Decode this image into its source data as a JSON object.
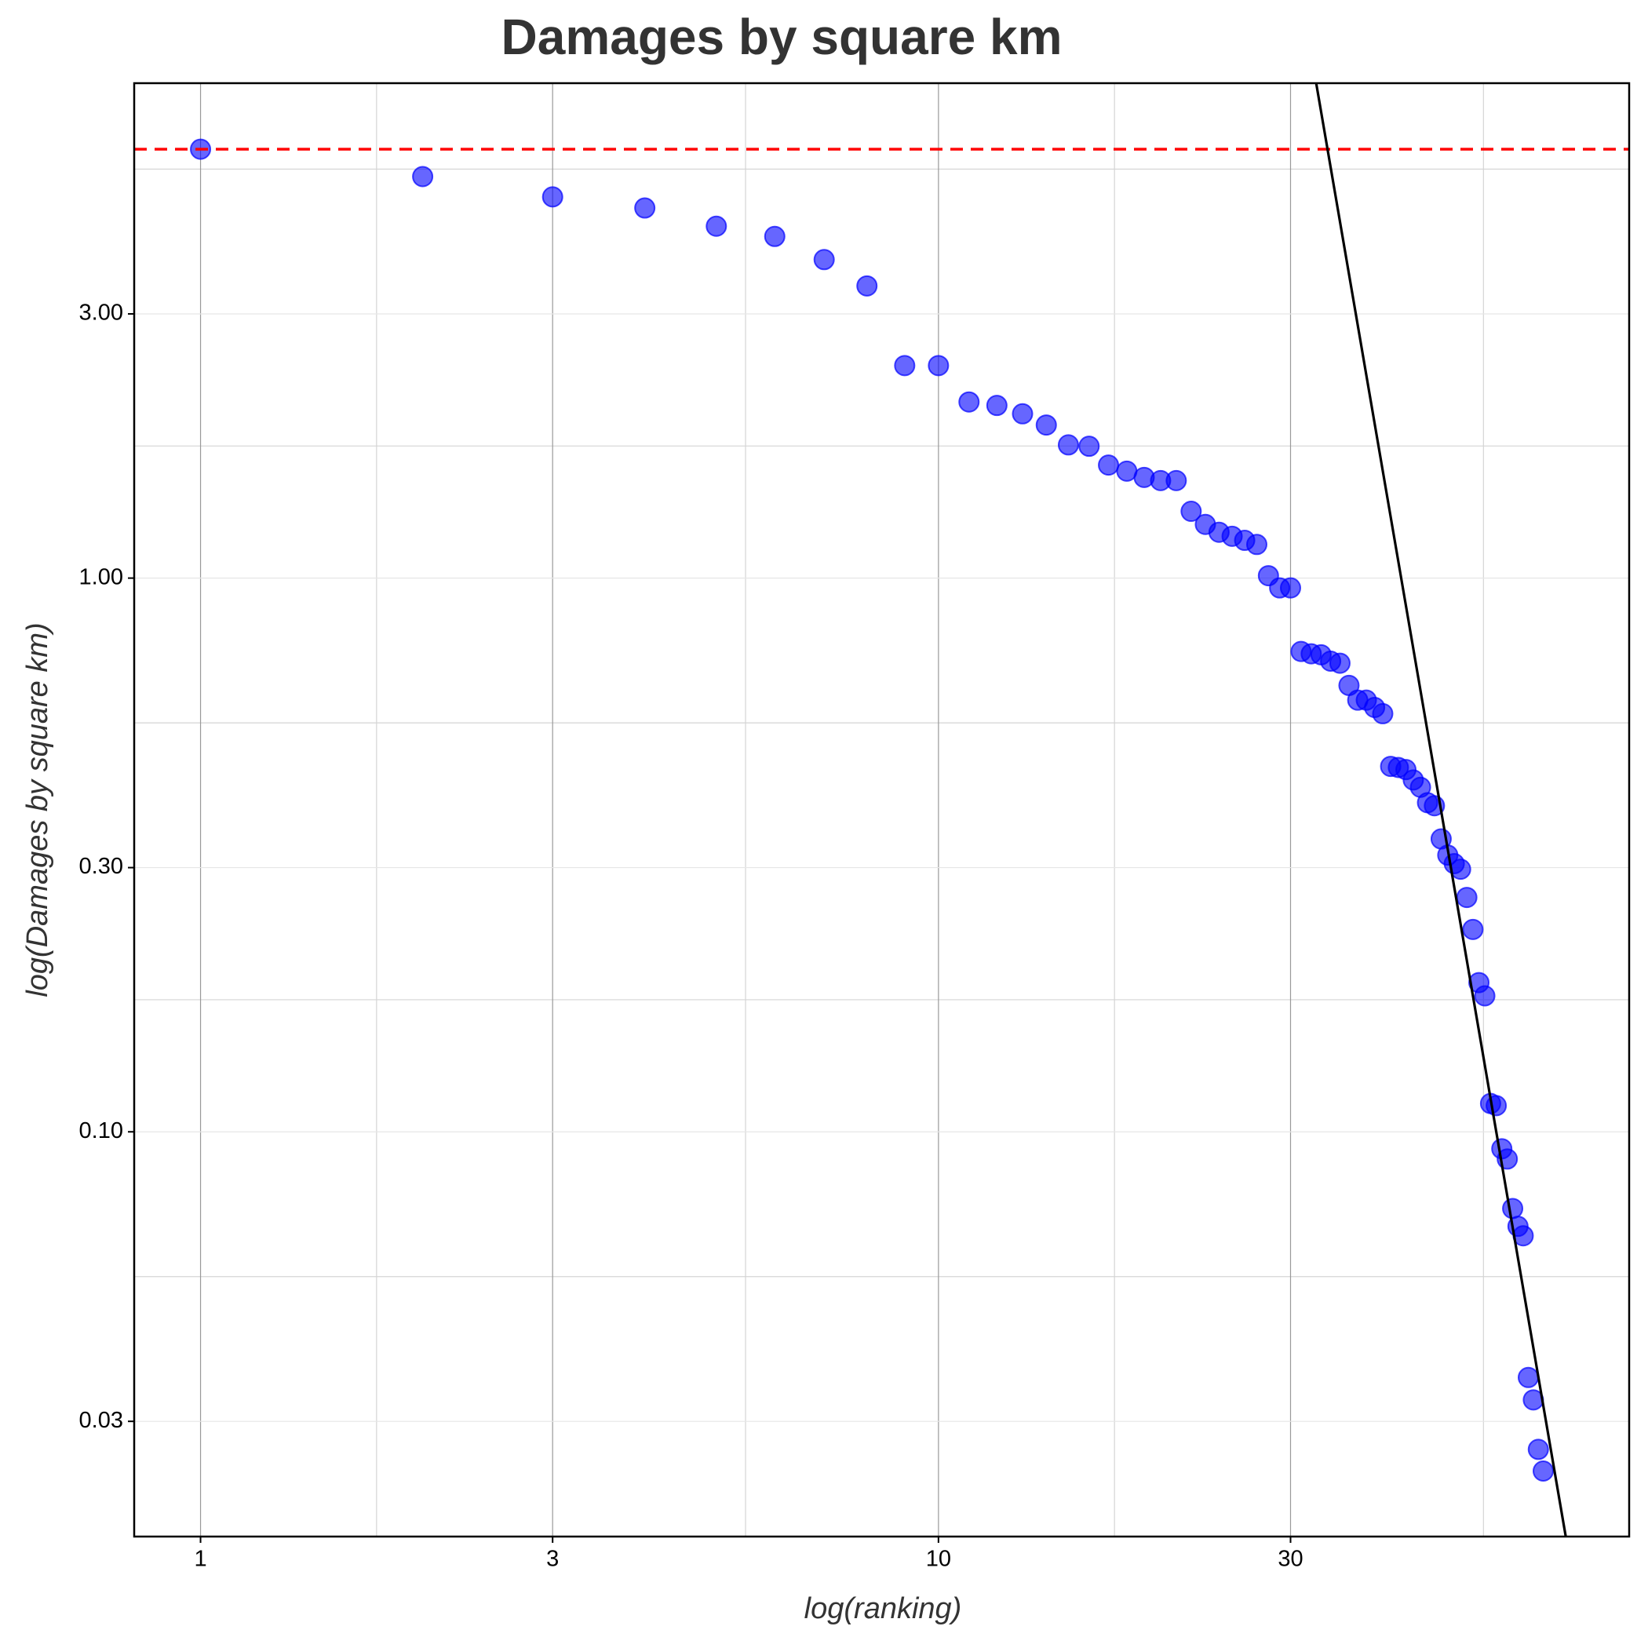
{
  "chart_data": {
    "type": "scatter",
    "title": "Damages by square km",
    "x_label": "log(ranking)",
    "y_label": "log(Damages by square km)",
    "log_x": true,
    "log_y": true,
    "grid": true,
    "xlim": [
      0.813,
      86.3
    ],
    "ylim": [
      0.01858,
      7.83
    ],
    "xticks": [
      1,
      3,
      10,
      30
    ],
    "yticks": [
      {
        "value": 3,
        "label": "3.00"
      },
      {
        "value": 1,
        "label": "1.00"
      },
      {
        "value": 0.3,
        "label": "0.30"
      },
      {
        "value": 0.1,
        "label": "0.10"
      },
      {
        "value": 0.03,
        "label": "0.03"
      }
    ],
    "xminor": [
      1.732,
      5.477,
      17.32,
      54.77
    ],
    "yminor": [
      5.477,
      1.732,
      0.5477,
      0.1732,
      0.05477
    ],
    "hline": {
      "y": 5.95,
      "color": "#ff0000"
    },
    "fit_line": {
      "x": [
        32.5,
        70.8
      ],
      "y": [
        7.83,
        0.0186
      ],
      "color": "#000000"
    },
    "series": [
      {
        "color": "#0000ff",
        "x": [
          1,
          2,
          3,
          4,
          5,
          6,
          7,
          8,
          9,
          10,
          11,
          12,
          13,
          14,
          15,
          16,
          17,
          18,
          19,
          20,
          21,
          22,
          23,
          24,
          25,
          26,
          27,
          28,
          29,
          30,
          31,
          32,
          33,
          34,
          35,
          36,
          37,
          38,
          39,
          40,
          41,
          42,
          43,
          44,
          45,
          46,
          47,
          48,
          49,
          50,
          51,
          52,
          53,
          54,
          55,
          56,
          57,
          58,
          59,
          60,
          61,
          62,
          63,
          64,
          65,
          66
        ],
        "values": [
          5.95,
          5.31,
          4.88,
          4.66,
          4.32,
          4.14,
          3.76,
          3.37,
          2.42,
          2.42,
          2.08,
          2.05,
          1.98,
          1.89,
          1.74,
          1.73,
          1.6,
          1.56,
          1.52,
          1.5,
          1.5,
          1.32,
          1.25,
          1.21,
          1.19,
          1.17,
          1.15,
          1.01,
          0.96,
          0.96,
          0.737,
          0.73,
          0.727,
          0.708,
          0.702,
          0.64,
          0.602,
          0.602,
          0.584,
          0.569,
          0.457,
          0.455,
          0.451,
          0.432,
          0.419,
          0.393,
          0.388,
          0.338,
          0.316,
          0.305,
          0.298,
          0.265,
          0.232,
          0.186,
          0.176,
          0.1125,
          0.1115,
          0.0932,
          0.0893,
          0.0727,
          0.0675,
          0.0649,
          0.036,
          0.0328,
          0.0267,
          0.0244
        ]
      }
    ]
  }
}
